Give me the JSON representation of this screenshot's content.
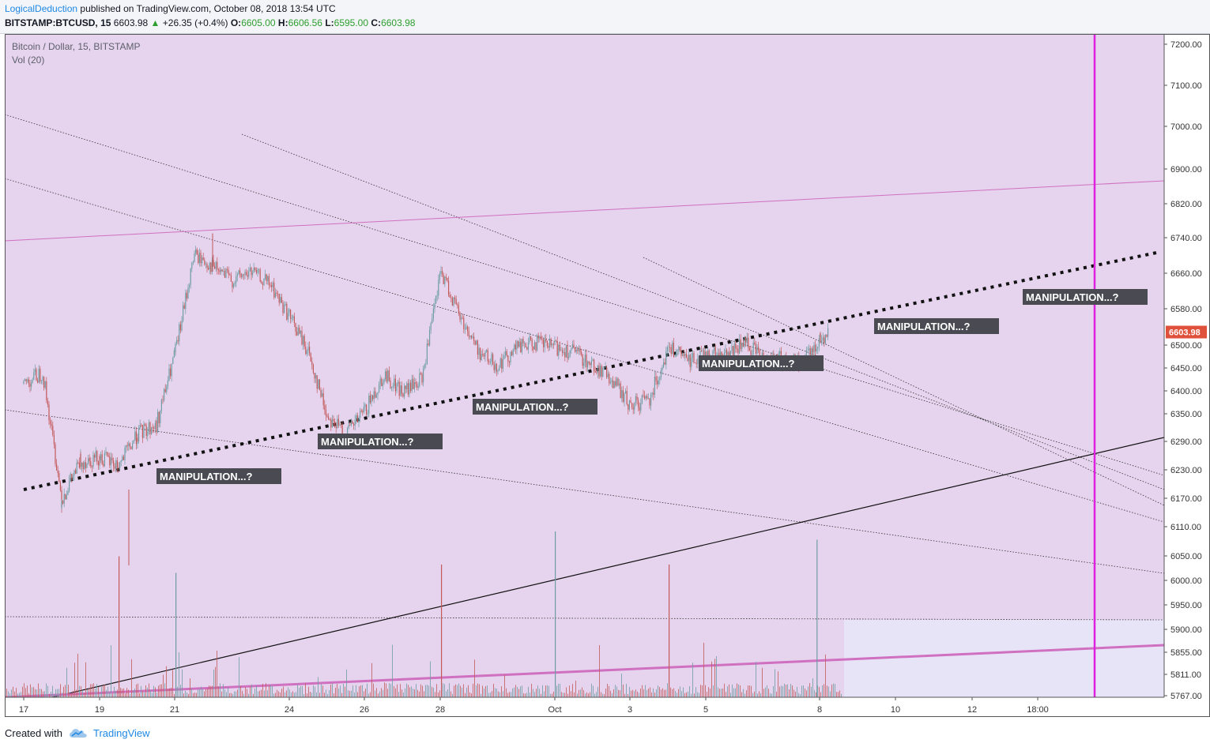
{
  "header": {
    "author": "LogicalDeduction",
    "published_text": "published on TradingView.com, October 08, 2018 13:54 UTC",
    "symbol": "BITSTAMP:BTCUSD, 15",
    "last": "6603.98",
    "change": "+26.35 (+0.4%)",
    "o_label": "O:",
    "o_value": "6605.00",
    "h_label": "H:",
    "h_value": "6606.56",
    "l_label": "L:",
    "l_value": "6595.00",
    "c_label": "C:",
    "c_value": "6603.98"
  },
  "legend": {
    "title": "Bitcoin / Dollar, 15, BITSTAMP",
    "volume": "Vol (20)"
  },
  "footer": {
    "created_with": "Created with",
    "brand": "TradingView"
  },
  "colors": {
    "background": "#e6d3ee",
    "future_zone": "#e8e4f8",
    "candle_up": "#6e9ea4",
    "candle_down": "#c25a5a",
    "magenta_line": "#e020e0",
    "pink_line": "#d070c0",
    "price_tag": "#e0513b",
    "annotation_bg": "#4a4a52"
  },
  "chart_data": {
    "type": "candlestick",
    "title": "Bitcoin / Dollar, 15, BITSTAMP",
    "interval": "15",
    "last_price": 6603.98,
    "y_axis_labels": [
      "7200.00",
      "7100.00",
      "7000.00",
      "6900.00",
      "6820.00",
      "6740.00",
      "6660.00",
      "6580.00",
      "6500.00",
      "6450.00",
      "6400.00",
      "6350.00",
      "6290.00",
      "6230.00",
      "6170.00",
      "6110.00",
      "6050.00",
      "6000.00",
      "5950.00",
      "5900.00",
      "5855.00",
      "5811.00",
      "5767.00"
    ],
    "x_axis_labels": [
      "17",
      "19",
      "21",
      "24",
      "26",
      "28",
      "Oct",
      "3",
      "5",
      "8",
      "10",
      "12",
      "18:00"
    ],
    "price_path": [
      {
        "x": "17",
        "close": 6490
      },
      {
        "x": "17.5",
        "close": 6515
      },
      {
        "x": "18",
        "close": 6240
      },
      {
        "x": "18.5",
        "close": 6320
      },
      {
        "x": "19",
        "close": 6330
      },
      {
        "x": "19.5",
        "close": 6310
      },
      {
        "x": "20",
        "close": 6380
      },
      {
        "x": "20.5",
        "close": 6400
      },
      {
        "x": "21",
        "close": 6560
      },
      {
        "x": "21.5",
        "close": 6780
      },
      {
        "x": "22",
        "close": 6750
      },
      {
        "x": "22.5",
        "close": 6720
      },
      {
        "x": "23",
        "close": 6740
      },
      {
        "x": "23.5",
        "close": 6710
      },
      {
        "x": "24",
        "close": 6640
      },
      {
        "x": "24.5",
        "close": 6560
      },
      {
        "x": "25",
        "close": 6420
      },
      {
        "x": "25.5",
        "close": 6380
      },
      {
        "x": "26",
        "close": 6430
      },
      {
        "x": "26.5",
        "close": 6510
      },
      {
        "x": "27",
        "close": 6470
      },
      {
        "x": "27.5",
        "close": 6500
      },
      {
        "x": "28",
        "close": 6740
      },
      {
        "x": "28.5",
        "close": 6640
      },
      {
        "x": "29",
        "close": 6560
      },
      {
        "x": "29.5",
        "close": 6530
      },
      {
        "x": "30",
        "close": 6570
      },
      {
        "x": "30.5",
        "close": 6580
      },
      {
        "x": "Oct 1",
        "close": 6570
      },
      {
        "x": "1.5",
        "close": 6560
      },
      {
        "x": "2",
        "close": 6530
      },
      {
        "x": "2.5",
        "close": 6500
      },
      {
        "x": "3",
        "close": 6440
      },
      {
        "x": "3.5",
        "close": 6460
      },
      {
        "x": "4",
        "close": 6570
      },
      {
        "x": "4.5",
        "close": 6540
      },
      {
        "x": "5",
        "close": 6560
      },
      {
        "x": "5.5",
        "close": 6550
      },
      {
        "x": "6",
        "close": 6580
      },
      {
        "x": "6.5",
        "close": 6550
      },
      {
        "x": "7",
        "close": 6545
      },
      {
        "x": "7.5",
        "close": 6530
      },
      {
        "x": "8",
        "close": 6590
      },
      {
        "x": "8.2",
        "close": 6603.98
      }
    ],
    "volume_spikes": [
      {
        "x": "19.5",
        "relative": 0.85
      },
      {
        "x": "21",
        "relative": 0.75
      },
      {
        "x": "28",
        "relative": 0.8
      },
      {
        "x": "Oct 1",
        "relative": 1.0
      },
      {
        "x": "4",
        "relative": 0.8
      },
      {
        "x": "7.9",
        "relative": 0.95
      }
    ],
    "annotations": [
      "MANIPULATION...?",
      "MANIPULATION...?",
      "MANIPULATION...?",
      "MANIPULATION...?",
      "MANIPULATION...?",
      "MANIPULATION...?"
    ],
    "grid": false,
    "legend_position": "top-left"
  }
}
